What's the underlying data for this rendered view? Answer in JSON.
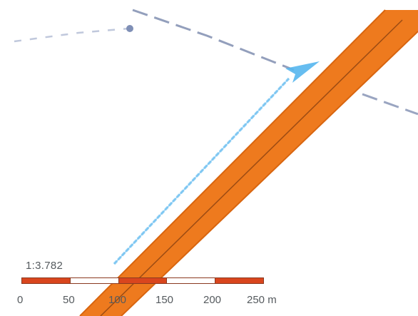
{
  "map": {
    "colors": {
      "background": "#ffffff",
      "road_fill": "#ee7a1e",
      "road_edge": "#c95d0d",
      "road_centerline": "#9a4a14",
      "route_line": "#7fc8f2",
      "route_arrow": "#55b6ee",
      "boundary_dash": "#6f7fa6",
      "waypoint": "#7f8fb6"
    },
    "features": [
      {
        "kind": "road",
        "name": "main-road",
        "icon": "orange-road-band"
      },
      {
        "kind": "route",
        "name": "navigation-route",
        "icon": "blue-arrow"
      },
      {
        "kind": "boundary",
        "name": "dashed-boundary-line",
        "icon": "dashed-line"
      },
      {
        "kind": "point",
        "name": "waypoint-marker",
        "icon": "dot"
      }
    ]
  },
  "scale": {
    "ratio": "1:3.782",
    "unit": "m",
    "ticks": [
      "0",
      "50",
      "100",
      "150",
      "200",
      "250 m"
    ],
    "segment_colors": [
      "#d9461e",
      "#ffffff",
      "#d9461e",
      "#ffffff",
      "#d9461e"
    ]
  }
}
